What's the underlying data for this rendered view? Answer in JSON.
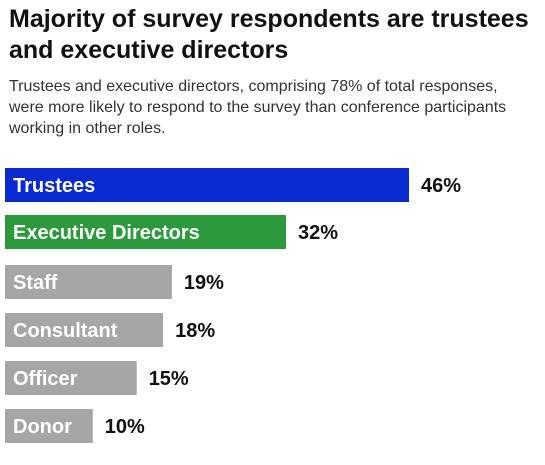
{
  "chart_data": {
    "type": "bar",
    "orientation": "horizontal",
    "title": "Majority of survey respondents are trustees and executive directors",
    "subtitle": "Trustees and executive directors, comprising 78% of total responses, were more likely to respond to the survey than conference participants working in other roles.",
    "categories": [
      "Trustees",
      "Executive Directors",
      "Staff",
      "Consultant",
      "Officer",
      "Donor"
    ],
    "values": [
      46,
      32,
      19,
      18,
      15,
      10
    ],
    "value_labels": [
      "46%",
      "32%",
      "19%",
      "18%",
      "15%",
      "10%"
    ],
    "colors": [
      "#0a2ad1",
      "#2c9a3c",
      "#a6a6a6",
      "#a6a6a6",
      "#a6a6a6",
      "#a6a6a6"
    ],
    "xlim": [
      0,
      46
    ],
    "grid": false,
    "legend": "none"
  }
}
